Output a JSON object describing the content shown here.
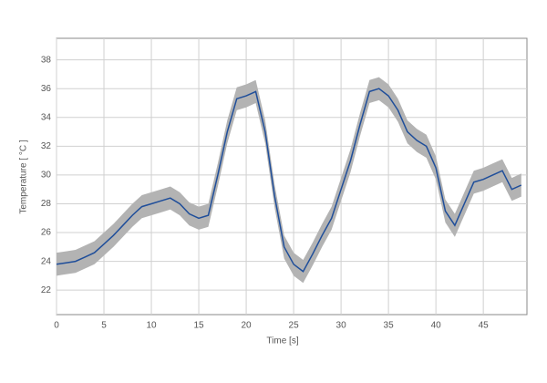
{
  "chart_data": {
    "type": "line",
    "x_label": "Time [s]",
    "y_label": "Temperature  [ °C ]",
    "x": [
      0,
      1,
      2,
      3,
      4,
      5,
      6,
      7,
      8,
      9,
      10,
      11,
      12,
      13,
      14,
      15,
      16,
      17,
      18,
      19,
      20,
      21,
      22,
      23,
      24,
      25,
      26,
      27,
      28,
      29,
      30,
      31,
      32,
      33,
      34,
      35,
      36,
      37,
      38,
      39,
      40,
      41,
      42,
      43,
      44,
      45,
      46,
      47,
      48,
      49
    ],
    "series": [
      {
        "color": "#1f4e9a",
        "band_color": "#b3b3b3",
        "band": 0.8,
        "values": [
          23.8,
          23.9,
          24.0,
          24.3,
          24.6,
          25.2,
          25.8,
          26.5,
          27.2,
          27.8,
          28.0,
          28.2,
          28.4,
          28.0,
          27.3,
          27.0,
          27.2,
          30.0,
          33.0,
          35.3,
          35.5,
          35.8,
          33.0,
          28.5,
          25.0,
          23.8,
          23.3,
          24.5,
          25.8,
          27.0,
          29.0,
          31.0,
          33.5,
          35.8,
          36.0,
          35.5,
          34.5,
          33.0,
          32.4,
          32.0,
          30.5,
          27.5,
          26.5,
          28.0,
          29.5,
          29.7,
          30.0,
          30.3,
          29.0,
          29.3
        ]
      }
    ],
    "xlim": [
      0,
      49.6
    ],
    "ylim": [
      20.3,
      39.5
    ],
    "xticks": [
      0,
      5,
      10,
      15,
      20,
      25,
      30,
      35,
      40,
      45
    ],
    "yticks": [
      22,
      24,
      26,
      28,
      30,
      32,
      34,
      36,
      38
    ],
    "grid": true
  }
}
